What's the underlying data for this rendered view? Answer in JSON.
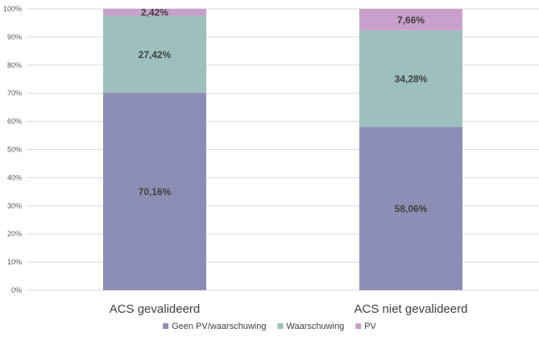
{
  "chart_data": {
    "type": "bar",
    "stacked": true,
    "percent_stacked": true,
    "categories": [
      "ACS gevalideerd",
      "ACS niet gevalideerd"
    ],
    "series": [
      {
        "name": "Geen PV/waarschuwing",
        "values": [
          70.16,
          58.06
        ],
        "labels": [
          "70,16%",
          "58,06%"
        ],
        "color": "#8c8eb6"
      },
      {
        "name": "Waarschuwing",
        "values": [
          27.42,
          34.28
        ],
        "labels": [
          "27,42%",
          "34,28%"
        ],
        "color": "#9dbfbe"
      },
      {
        "name": "PV",
        "values": [
          2.42,
          7.66
        ],
        "labels": [
          "2,42%",
          "7,66%"
        ],
        "color": "#c9a0cc"
      }
    ],
    "ylim": [
      0,
      100
    ],
    "yticks": [
      "0%",
      "10%",
      "20%",
      "30%",
      "40%",
      "50%",
      "60%",
      "70%",
      "80%",
      "90%",
      "100%"
    ],
    "grid": true,
    "legend": "bottom",
    "gridline_color": "#d9d9d9",
    "title": "",
    "xlabel": "",
    "ylabel": ""
  }
}
